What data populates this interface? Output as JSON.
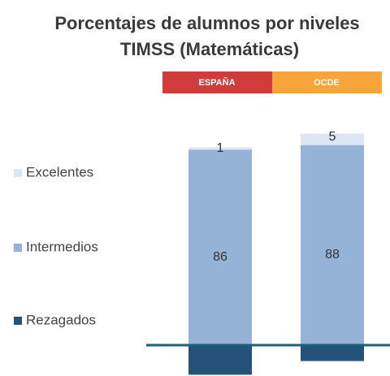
{
  "chart_data": {
    "type": "stacked-bar",
    "title": "Porcentajes de alumnos por niveles TIMSS (Matemáticas)",
    "categories": [
      "ESPAÑA",
      "OCDE"
    ],
    "category_colors": [
      "#d03c3c",
      "#f7a43a"
    ],
    "series": [
      {
        "name": "Rezagados",
        "color": "#245278",
        "values": [
          13,
          7
        ]
      },
      {
        "name": "Intermedios",
        "color": "#95b3d7",
        "values": [
          86,
          88
        ]
      },
      {
        "name": "Excelentes",
        "color": "#dce6f2",
        "values": [
          1,
          5
        ]
      }
    ],
    "data_labels": [
      false,
      true,
      true
    ]
  }
}
